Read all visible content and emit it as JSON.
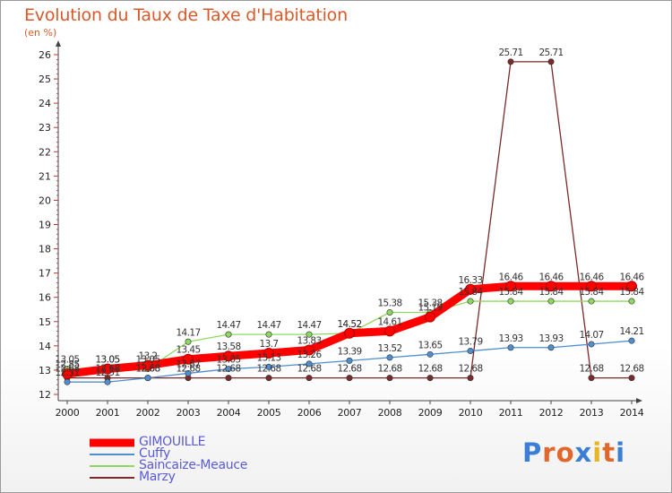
{
  "title": "Evolution du Taux de Taxe d'Habitation",
  "subtitle": "(en %)",
  "logo": {
    "text": "Proxiti",
    "letters": [
      "P",
      "r",
      "o",
      "x",
      "i",
      "t",
      "i"
    ],
    "colors": [
      "#3a7fd5",
      "#e0682b",
      "#e0682b",
      "#3a7fd5",
      "#e8b61f",
      "#e0682b",
      "#3a7fd5"
    ]
  },
  "chart_data": {
    "type": "line",
    "title": "Evolution du Taux de Taxe d'Habitation",
    "ylabel": "(en %)",
    "x": [
      "2000",
      "2001",
      "2002",
      "2003",
      "2004",
      "2005",
      "2006",
      "2007",
      "2008",
      "2009",
      "2010",
      "2011",
      "2012",
      "2013",
      "2014"
    ],
    "ylim": [
      12,
      26
    ],
    "yticks": [
      "12",
      "13",
      "14",
      "15",
      "16",
      "17",
      "18",
      "19",
      "20",
      "21",
      "22",
      "23",
      "24",
      "25",
      "26"
    ],
    "grid": false,
    "legend_position": "bottom-left",
    "series": [
      {
        "name": "GIMOUILLE",
        "color": "#ff0000",
        "values": [
          12.85,
          13.05,
          13.2,
          13.45,
          13.58,
          13.7,
          13.83,
          14.52,
          14.61,
          15.19,
          16.33,
          16.46,
          16.46,
          16.46,
          16.46
        ],
        "labels": [
          "12.85",
          "13.05",
          "13.2",
          "13.45",
          "13.58",
          "13.7",
          "13.83",
          "14.52",
          "14.61",
          "15.19",
          "16.33",
          "16.46",
          "16.46",
          "16.46",
          "16.46"
        ]
      },
      {
        "name": "Cuffy",
        "color": "#4f8fcf",
        "values": [
          12.51,
          12.51,
          12.68,
          12.87,
          13.05,
          13.13,
          13.26,
          13.39,
          13.52,
          13.65,
          13.79,
          13.93,
          13.93,
          14.07,
          14.21
        ],
        "labels": [
          "12.51",
          "12.51",
          "12.68",
          "12.87",
          "13.05",
          "13.13",
          "13.26",
          "13.39",
          "13.52",
          "13.65",
          "13.79",
          "13.93",
          "13.93",
          "14.07",
          "14.21"
        ]
      },
      {
        "name": "Saincaize-Meauce",
        "color": "#8fd860",
        "values": [
          13.05,
          13.05,
          13.05,
          14.17,
          14.47,
          14.47,
          14.47,
          14.52,
          15.38,
          15.38,
          15.84,
          15.84,
          15.84,
          15.84,
          15.84
        ],
        "labels": [
          "13.05",
          "13.05",
          "13.05",
          "14.17",
          "14.47",
          "14.47",
          "14.47",
          "14.52",
          "15.38",
          "15.38",
          "15.84",
          "15.84",
          "15.84",
          "15.84",
          "15.84"
        ]
      },
      {
        "name": "Marzy",
        "color": "#7a2a2a",
        "values": [
          12.68,
          12.68,
          12.68,
          12.68,
          12.68,
          12.68,
          12.68,
          12.68,
          12.68,
          12.68,
          12.68,
          25.71,
          25.71,
          12.68,
          12.68
        ],
        "labels": [
          "12.68",
          "12.68",
          "12.68",
          "12.68",
          "12.68",
          "12.68",
          "12.68",
          "12.68",
          "12.68",
          "12.68",
          "12.68",
          "25.71",
          "25.71",
          "12.68",
          "12.68"
        ]
      }
    ]
  }
}
